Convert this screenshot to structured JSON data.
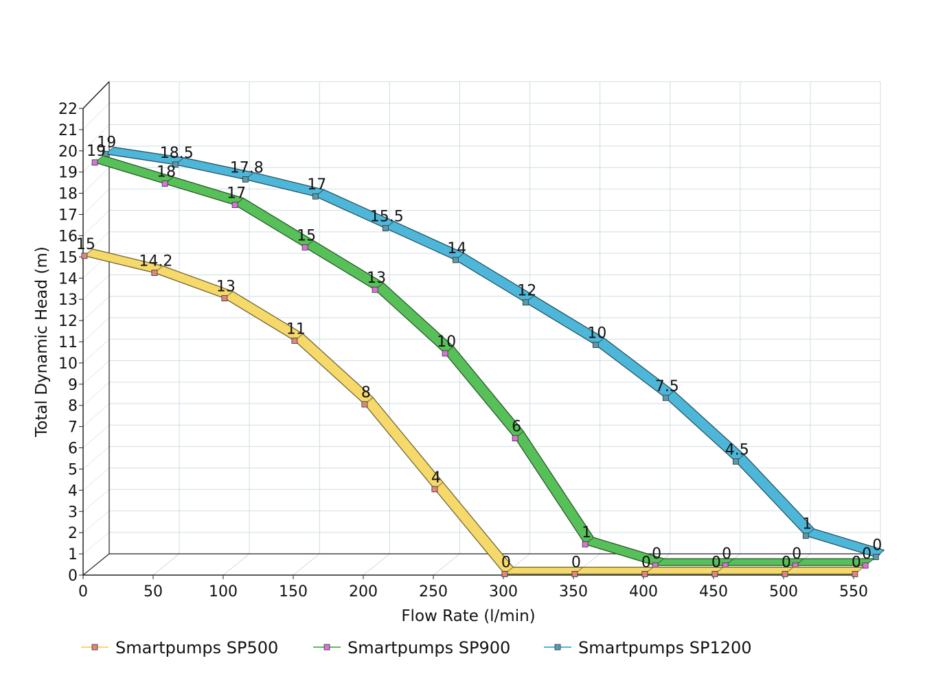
{
  "chart_data": {
    "type": "line",
    "style": "3d-ribbon",
    "title": "",
    "xlabel": "Flow Rate (l/min)",
    "ylabel": "Total Dynamic Head (m)",
    "xlim": [
      0,
      570
    ],
    "ylim": [
      0,
      22
    ],
    "x_ticks": [
      0,
      50,
      100,
      150,
      200,
      250,
      300,
      350,
      400,
      450,
      500,
      550
    ],
    "y_ticks": [
      0,
      1,
      2,
      3,
      4,
      5,
      6,
      7,
      8,
      9,
      10,
      11,
      12,
      13,
      14,
      15,
      16,
      17,
      18,
      19,
      20,
      21,
      22
    ],
    "grid": true,
    "legend_position": "bottom",
    "series": [
      {
        "name": "Smartpumps SP500",
        "color": "#f5d96b",
        "marker_color": "#e0877a",
        "x": [
          0,
          50,
          100,
          150,
          200,
          250,
          300,
          350,
          400,
          450,
          500,
          550
        ],
        "values": [
          15,
          14.2,
          13,
          11,
          8,
          4,
          0,
          0,
          0,
          0,
          0,
          0
        ],
        "labels": [
          "15",
          "14.2",
          "13",
          "11",
          "8",
          "4",
          "0",
          "0",
          "0",
          "0",
          "0",
          "0"
        ]
      },
      {
        "name": "Smartpumps SP900",
        "color": "#57c058",
        "marker_color": "#d873d8",
        "x": [
          0,
          50,
          100,
          150,
          200,
          250,
          300,
          350,
          400,
          450,
          500,
          550
        ],
        "values": [
          19,
          18,
          17,
          15,
          13,
          10,
          6,
          1,
          0,
          0,
          0,
          0
        ],
        "labels": [
          "19",
          "18",
          "17",
          "15",
          "13",
          "10",
          "6",
          "1",
          "0",
          "0",
          "0",
          "0"
        ]
      },
      {
        "name": "Smartpumps SP1200",
        "color": "#4eb6d8",
        "marker_color": "#5a9aaa",
        "x": [
          0,
          50,
          100,
          150,
          200,
          250,
          300,
          350,
          400,
          450,
          500,
          550
        ],
        "values": [
          19,
          18.5,
          17.8,
          17,
          15.5,
          14,
          12,
          10,
          7.5,
          4.5,
          1,
          0
        ],
        "labels": [
          "19",
          "18.5",
          "17.8",
          "17",
          "15.5",
          "14",
          "12",
          "10",
          "7.5",
          "4.5",
          "1",
          "0"
        ]
      }
    ]
  }
}
